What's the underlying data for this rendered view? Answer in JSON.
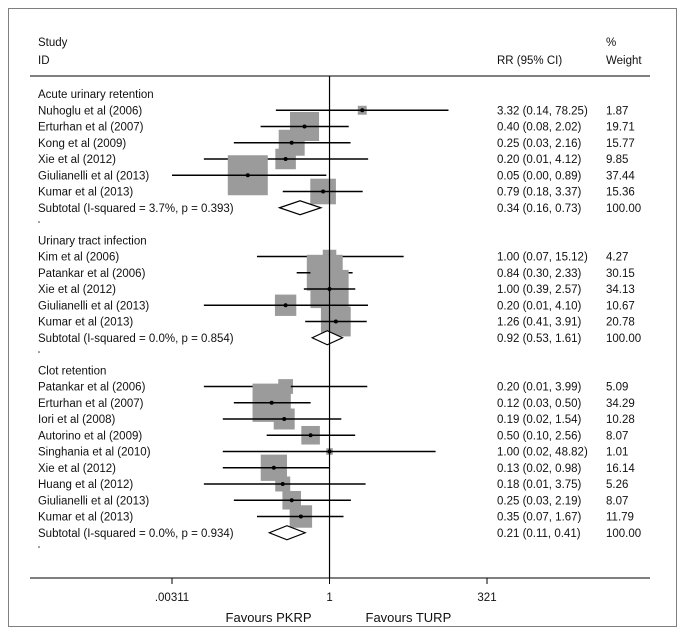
{
  "header": {
    "study_line1": "Study",
    "study_line2": "ID",
    "rr_label": "RR (95% CI)",
    "weight_line1": "%",
    "weight_line2": "Weight"
  },
  "axis": {
    "ticks": [
      ".00311",
      "1",
      "321"
    ],
    "favours_left": "Favours PKRP",
    "favours_right": "Favours TURP"
  },
  "colors": {
    "box": "#9b9b9b",
    "line": "#000000",
    "diamond_fill": "#ffffff"
  },
  "chart_data": {
    "type": "forest",
    "x_scale": "log",
    "xlim": [
      0.00311,
      321
    ],
    "null_line": 1,
    "groups": [
      {
        "name": "Acute urinary retention",
        "studies": [
          {
            "label": "Nuhoglu et al (2006)",
            "rr": 3.32,
            "lo": 0.14,
            "hi": 78.25,
            "text": "3.32 (0.14, 78.25)",
            "weight": "1.87",
            "w": 1.87
          },
          {
            "label": "Erturhan et al (2007)",
            "rr": 0.4,
            "lo": 0.08,
            "hi": 2.02,
            "text": "0.40 (0.08, 2.02)",
            "weight": "19.71",
            "w": 19.71
          },
          {
            "label": "Kong  et al (2009)",
            "rr": 0.25,
            "lo": 0.03,
            "hi": 2.16,
            "text": "0.25 (0.03, 2.16)",
            "weight": "15.77",
            "w": 15.77
          },
          {
            "label": "Xie et al  (2012)",
            "rr": 0.2,
            "lo": 0.01,
            "hi": 4.12,
            "text": "0.20 (0.01, 4.12)",
            "weight": "9.85",
            "w": 9.85
          },
          {
            "label": "Giulianelli et al (2013)",
            "rr": 0.05,
            "lo": 0.0,
            "hi": 0.89,
            "text": "0.05 (0.00, 0.89)",
            "weight": "37.44",
            "w": 37.44
          },
          {
            "label": "Kumar et al (2013)",
            "rr": 0.79,
            "lo": 0.18,
            "hi": 3.37,
            "text": "0.79 (0.18, 3.37)",
            "weight": "15.36",
            "w": 15.36
          }
        ],
        "subtotal": {
          "label": "Subtotal  (I-squared = 3.7%, p = 0.393)",
          "rr": 0.34,
          "lo": 0.16,
          "hi": 0.73,
          "text": "0.34 (0.16, 0.73)",
          "weight": "100.00"
        }
      },
      {
        "name": "Urinary tract infection",
        "studies": [
          {
            "label": "Kim et al (2006)",
            "rr": 1.0,
            "lo": 0.07,
            "hi": 15.12,
            "text": "1.00 (0.07, 15.12)",
            "weight": "4.27",
            "w": 4.27
          },
          {
            "label": "Patankar et al (2006)",
            "rr": 0.84,
            "lo": 0.3,
            "hi": 2.33,
            "text": "0.84 (0.30, 2.33)",
            "weight": "30.15",
            "w": 30.15
          },
          {
            "label": "Xie et al  (2012)",
            "rr": 1.0,
            "lo": 0.39,
            "hi": 2.57,
            "text": "1.00 (0.39, 2.57)",
            "weight": "34.13",
            "w": 34.13
          },
          {
            "label": "Giulianelli et al (2013)",
            "rr": 0.2,
            "lo": 0.01,
            "hi": 4.1,
            "text": "0.20 (0.01, 4.10)",
            "weight": "10.67",
            "w": 10.67
          },
          {
            "label": "Kumar et al (2013)",
            "rr": 1.26,
            "lo": 0.41,
            "hi": 3.91,
            "text": "1.26 (0.41, 3.91)",
            "weight": "20.78",
            "w": 20.78
          }
        ],
        "subtotal": {
          "label": "Subtotal  (I-squared = 0.0%, p = 0.854)",
          "rr": 0.92,
          "lo": 0.53,
          "hi": 1.61,
          "text": "0.92 (0.53, 1.61)",
          "weight": "100.00"
        }
      },
      {
        "name": "Clot retention",
        "studies": [
          {
            "label": "Patankar et al (2006)",
            "rr": 0.2,
            "lo": 0.01,
            "hi": 3.99,
            "text": "0.20 (0.01, 3.99)",
            "weight": "5.09",
            "w": 5.09
          },
          {
            "label": "Erturhan et al (2007)",
            "rr": 0.12,
            "lo": 0.03,
            "hi": 0.5,
            "text": "0.12 (0.03, 0.50)",
            "weight": "34.29",
            "w": 34.29
          },
          {
            "label": "Iori et al (2008)",
            "rr": 0.19,
            "lo": 0.02,
            "hi": 1.54,
            "text": "0.19 (0.02, 1.54)",
            "weight": "10.28",
            "w": 10.28
          },
          {
            "label": "Autorino et al (2009)",
            "rr": 0.5,
            "lo": 0.1,
            "hi": 2.56,
            "text": "0.50 (0.10, 2.56)",
            "weight": "8.07",
            "w": 8.07
          },
          {
            "label": "Singhania et al (2010)",
            "rr": 1.0,
            "lo": 0.02,
            "hi": 48.82,
            "text": "1.00 (0.02, 48.82)",
            "weight": "1.01",
            "w": 1.01
          },
          {
            "label": "Xie et al  (2012)",
            "rr": 0.13,
            "lo": 0.02,
            "hi": 0.98,
            "text": "0.13 (0.02, 0.98)",
            "weight": "16.14",
            "w": 16.14
          },
          {
            "label": "Huang et al  (2012)",
            "rr": 0.18,
            "lo": 0.01,
            "hi": 3.75,
            "text": "0.18 (0.01, 3.75)",
            "weight": "5.26",
            "w": 5.26
          },
          {
            "label": "Giulianelli et al (2013)",
            "rr": 0.25,
            "lo": 0.03,
            "hi": 2.19,
            "text": "0.25 (0.03, 2.19)",
            "weight": "8.07",
            "w": 8.07
          },
          {
            "label": "Kumar et al (2013)",
            "rr": 0.35,
            "lo": 0.07,
            "hi": 1.67,
            "text": "0.35 (0.07, 1.67)",
            "weight": "11.79",
            "w": 11.79
          }
        ],
        "subtotal": {
          "label": "Subtotal  (I-squared = 0.0%, p = 0.934)",
          "rr": 0.21,
          "lo": 0.11,
          "hi": 0.41,
          "text": "0.21 (0.11, 0.41)",
          "weight": "100.00"
        }
      }
    ]
  }
}
